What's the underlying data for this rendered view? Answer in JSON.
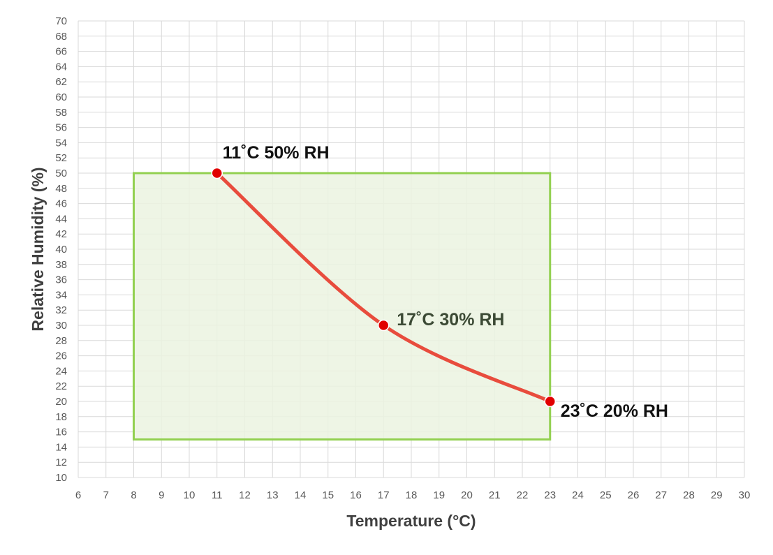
{
  "chart_data": {
    "type": "line",
    "xlabel": "Temperature (°C)",
    "ylabel": "Relative Humidity (%)",
    "xlim": [
      6,
      30
    ],
    "ylim": [
      10,
      70
    ],
    "x_ticks": [
      "6",
      "7",
      "8",
      "9",
      "10",
      "11",
      "12",
      "13",
      "14",
      "15",
      "16",
      "17",
      "18",
      "19",
      "20",
      "21",
      "22",
      "23",
      "24",
      "25",
      "26",
      "27",
      "28",
      "29",
      "30"
    ],
    "y_ticks": [
      "10",
      "12",
      "14",
      "16",
      "18",
      "20",
      "22",
      "24",
      "26",
      "28",
      "30",
      "32",
      "34",
      "36",
      "38",
      "40",
      "42",
      "44",
      "46",
      "48",
      "50",
      "52",
      "54",
      "56",
      "58",
      "60",
      "62",
      "64",
      "66",
      "68",
      "70"
    ],
    "grid": true,
    "region": {
      "x": [
        8,
        23
      ],
      "y": [
        15,
        50
      ],
      "fill": "#ebf3e1",
      "stroke": "#92d050"
    },
    "series": [
      {
        "color": "#e84c3d",
        "points": [
          {
            "x": 11,
            "y": 50
          },
          {
            "x": 17,
            "y": 30
          },
          {
            "x": 23,
            "y": 20
          }
        ]
      }
    ],
    "annotations": [
      {
        "text": "11˚C  50% RH",
        "x": 11,
        "y": 50,
        "color": "#111111"
      },
      {
        "text": "17˚C  30% RH",
        "x": 17,
        "y": 30,
        "color": "#3c4a35"
      },
      {
        "text": "23˚C   20% RH",
        "x": 23,
        "y": 20,
        "color": "#111111"
      }
    ]
  }
}
